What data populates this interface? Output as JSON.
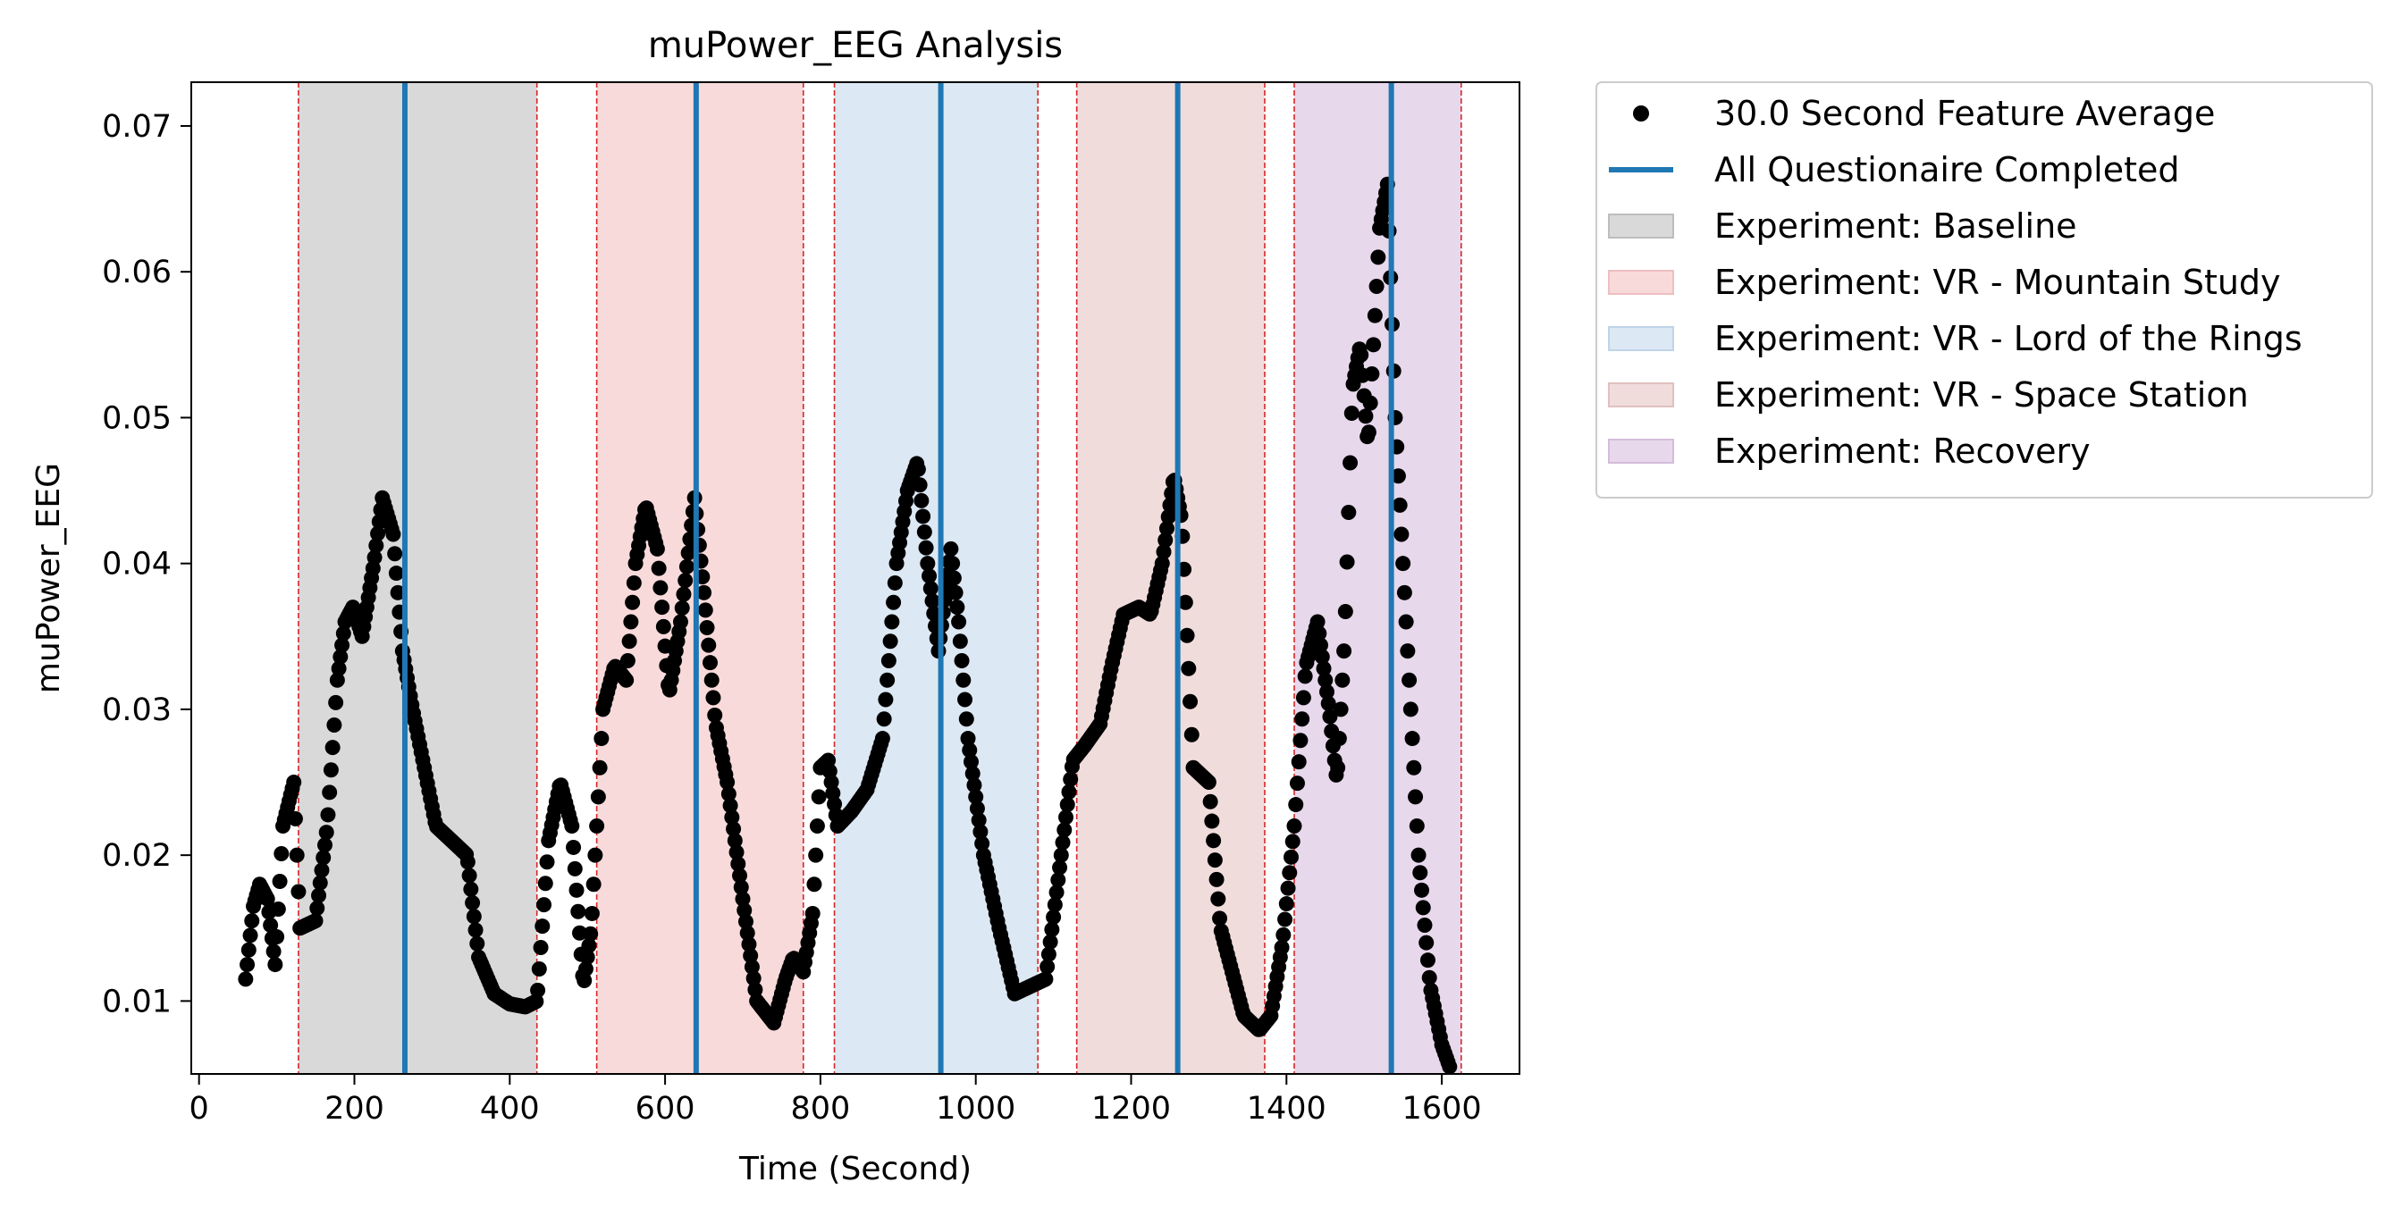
{
  "chart_data": {
    "type": "scatter",
    "title": "muPower_EEG Analysis",
    "xlabel": "Time (Second)",
    "ylabel": "muPower_EEG",
    "xlim": [
      -10,
      1700
    ],
    "ylim": [
      0.005,
      0.073
    ],
    "xticks": [
      0,
      200,
      400,
      600,
      800,
      1000,
      1200,
      1400,
      1600
    ],
    "xtick_labels": [
      "0",
      "200",
      "400",
      "600",
      "800",
      "1000",
      "1200",
      "1400",
      "1600"
    ],
    "yticks": [
      0.01,
      0.02,
      0.03,
      0.04,
      0.05,
      0.06,
      0.07
    ],
    "ytick_labels": [
      "0.01",
      "0.02",
      "0.03",
      "0.04",
      "0.05",
      "0.06",
      "0.07"
    ],
    "grid": false,
    "legend_placement": "outside-upper-right",
    "series": [
      {
        "name": "30.0 Second Feature Average",
        "kind": "scatter",
        "color": "#000000",
        "x_start": 60,
        "x_step": 2,
        "anchors": [
          [
            60,
            0.0115
          ],
          [
            70,
            0.0165
          ],
          [
            78,
            0.018
          ],
          [
            88,
            0.017
          ],
          [
            98,
            0.0125
          ],
          [
            108,
            0.022
          ],
          [
            122,
            0.025
          ],
          [
            130,
            0.015
          ],
          [
            150,
            0.0155
          ],
          [
            165,
            0.022
          ],
          [
            178,
            0.032
          ],
          [
            188,
            0.036
          ],
          [
            198,
            0.037
          ],
          [
            210,
            0.035
          ],
          [
            225,
            0.04
          ],
          [
            236,
            0.0445
          ],
          [
            250,
            0.042
          ],
          [
            262,
            0.034
          ],
          [
            275,
            0.03
          ],
          [
            290,
            0.026
          ],
          [
            305,
            0.022
          ],
          [
            325,
            0.021
          ],
          [
            345,
            0.02
          ],
          [
            360,
            0.013
          ],
          [
            380,
            0.0105
          ],
          [
            400,
            0.0098
          ],
          [
            420,
            0.0096
          ],
          [
            435,
            0.01
          ],
          [
            450,
            0.021
          ],
          [
            465,
            0.025
          ],
          [
            480,
            0.022
          ],
          [
            495,
            0.011
          ],
          [
            505,
            0.015
          ],
          [
            520,
            0.03
          ],
          [
            535,
            0.033
          ],
          [
            550,
            0.032
          ],
          [
            562,
            0.04
          ],
          [
            575,
            0.044
          ],
          [
            590,
            0.041
          ],
          [
            605,
            0.031
          ],
          [
            620,
            0.036
          ],
          [
            638,
            0.0445
          ],
          [
            650,
            0.038
          ],
          [
            665,
            0.029
          ],
          [
            680,
            0.025
          ],
          [
            700,
            0.017
          ],
          [
            718,
            0.01
          ],
          [
            740,
            0.0085
          ],
          [
            755,
            0.0115
          ],
          [
            765,
            0.013
          ],
          [
            778,
            0.012
          ],
          [
            790,
            0.016
          ],
          [
            800,
            0.026
          ],
          [
            810,
            0.0265
          ],
          [
            822,
            0.022
          ],
          [
            840,
            0.023
          ],
          [
            860,
            0.0245
          ],
          [
            880,
            0.028
          ],
          [
            898,
            0.04
          ],
          [
            912,
            0.045
          ],
          [
            925,
            0.047
          ],
          [
            938,
            0.04
          ],
          [
            952,
            0.034
          ],
          [
            968,
            0.041
          ],
          [
            978,
            0.036
          ],
          [
            990,
            0.028
          ],
          [
            1010,
            0.02
          ],
          [
            1030,
            0.015
          ],
          [
            1050,
            0.0105
          ],
          [
            1070,
            0.011
          ],
          [
            1090,
            0.0115
          ],
          [
            1110,
            0.02
          ],
          [
            1125,
            0.0265
          ],
          [
            1140,
            0.0275
          ],
          [
            1160,
            0.029
          ],
          [
            1175,
            0.033
          ],
          [
            1190,
            0.0365
          ],
          [
            1210,
            0.037
          ],
          [
            1225,
            0.0365
          ],
          [
            1240,
            0.04
          ],
          [
            1255,
            0.046
          ],
          [
            1265,
            0.043
          ],
          [
            1280,
            0.026
          ],
          [
            1300,
            0.025
          ],
          [
            1315,
            0.015
          ],
          [
            1330,
            0.012
          ],
          [
            1345,
            0.009
          ],
          [
            1365,
            0.008
          ],
          [
            1380,
            0.009
          ],
          [
            1395,
            0.014
          ],
          [
            1410,
            0.022
          ],
          [
            1425,
            0.033
          ],
          [
            1440,
            0.036
          ],
          [
            1455,
            0.03
          ],
          [
            1465,
            0.025
          ],
          [
            1475,
            0.035
          ],
          [
            1485,
            0.052
          ],
          [
            1495,
            0.055
          ],
          [
            1505,
            0.048
          ],
          [
            1520,
            0.063
          ],
          [
            1530,
            0.066
          ],
          [
            1540,
            0.05
          ],
          [
            1555,
            0.035
          ],
          [
            1570,
            0.02
          ],
          [
            1585,
            0.011
          ],
          [
            1600,
            0.007
          ],
          [
            1610,
            0.0055
          ]
        ]
      },
      {
        "name": "All Questionaire Completed",
        "kind": "vline",
        "color": "#1f77b4",
        "x": [
          265,
          640,
          955,
          1260,
          1535
        ]
      }
    ],
    "spans": [
      {
        "label": "Experiment: Baseline",
        "x0": 128,
        "x1": 435,
        "color": "#d9d9d9"
      },
      {
        "label": "Experiment: VR - Mountain Study",
        "x0": 512,
        "x1": 778,
        "color": "#f8dadb"
      },
      {
        "label": "Experiment: VR - Lord of the Rings",
        "x0": 818,
        "x1": 1080,
        "color": "#dce8f3"
      },
      {
        "label": "Experiment: VR - Space Station",
        "x0": 1130,
        "x1": 1372,
        "color": "#f1dcdc"
      },
      {
        "label": "Experiment: Recovery",
        "x0": 1410,
        "x1": 1625,
        "color": "#e8d8ec"
      }
    ],
    "legend": [
      {
        "label": "30.0 Second Feature Average",
        "kind": "marker",
        "color": "#000000"
      },
      {
        "label": "All Questionaire Completed",
        "kind": "line",
        "color": "#1f77b4"
      },
      {
        "label": "Experiment: Baseline",
        "kind": "patch",
        "color": "#d9d9d9",
        "edge": "#bdbdbd"
      },
      {
        "label": "Experiment: VR - Mountain Study",
        "kind": "patch",
        "color": "#f8dadb",
        "edge": "#eebfc1"
      },
      {
        "label": "Experiment: VR - Lord of the Rings",
        "kind": "patch",
        "color": "#dce8f3",
        "edge": "#bfd4e8"
      },
      {
        "label": "Experiment: VR - Space Station",
        "kind": "patch",
        "color": "#f1dcdc",
        "edge": "#e1c0c0"
      },
      {
        "label": "Experiment: Recovery",
        "kind": "patch",
        "color": "#e8d8ec",
        "edge": "#d4bcdb"
      }
    ]
  }
}
